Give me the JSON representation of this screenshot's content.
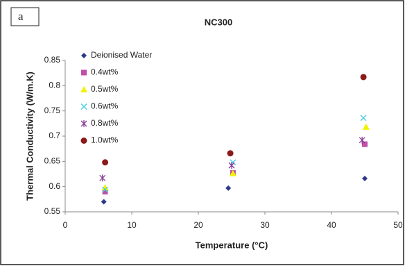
{
  "chart_data": {
    "type": "scatter",
    "panel_label": "a",
    "title": "NC300",
    "x_label": "Temperature (°C)",
    "y_label": "Thermal Conductivity (W/m.K)",
    "xlim": [
      0,
      50
    ],
    "xticks": [
      0,
      10,
      20,
      30,
      40,
      50
    ],
    "ylim": [
      0.55,
      0.85
    ],
    "yticks": [
      0.55,
      0.6,
      0.65,
      0.7,
      0.75,
      0.8,
      0.85
    ],
    "legend": "upper left",
    "grid": false,
    "series": [
      {
        "name": "Deionised Water",
        "color": "#2e3a87",
        "marker": "diamond",
        "x": [
          5.8,
          24.5,
          45
        ],
        "values": [
          0.57,
          0.597,
          0.616
        ]
      },
      {
        "name": "0.4wt%",
        "color": "#c04fa8",
        "marker": "square",
        "x": [
          6,
          25.2,
          45
        ],
        "values": [
          0.59,
          0.627,
          0.684
        ]
      },
      {
        "name": "0.5wt%",
        "color": "#f2f200",
        "marker": "triangle",
        "x": [
          6,
          25.2,
          45.2
        ],
        "values": [
          0.598,
          0.626,
          0.718
        ]
      },
      {
        "name": "0.6wt%",
        "color": "#3ccbe8",
        "marker": "cross",
        "x": [
          6,
          25.2,
          44.8
        ],
        "values": [
          0.594,
          0.648,
          0.736
        ]
      },
      {
        "name": "0.8wt%",
        "color": "#8a3a9a",
        "marker": "star",
        "x": [
          5.6,
          25,
          44.6
        ],
        "values": [
          0.617,
          0.642,
          0.692
        ]
      },
      {
        "name": "1.0wt%",
        "color": "#8b1a1a",
        "marker": "circle",
        "x": [
          6,
          24.8,
          44.8
        ],
        "values": [
          0.648,
          0.666,
          0.817
        ]
      }
    ]
  }
}
